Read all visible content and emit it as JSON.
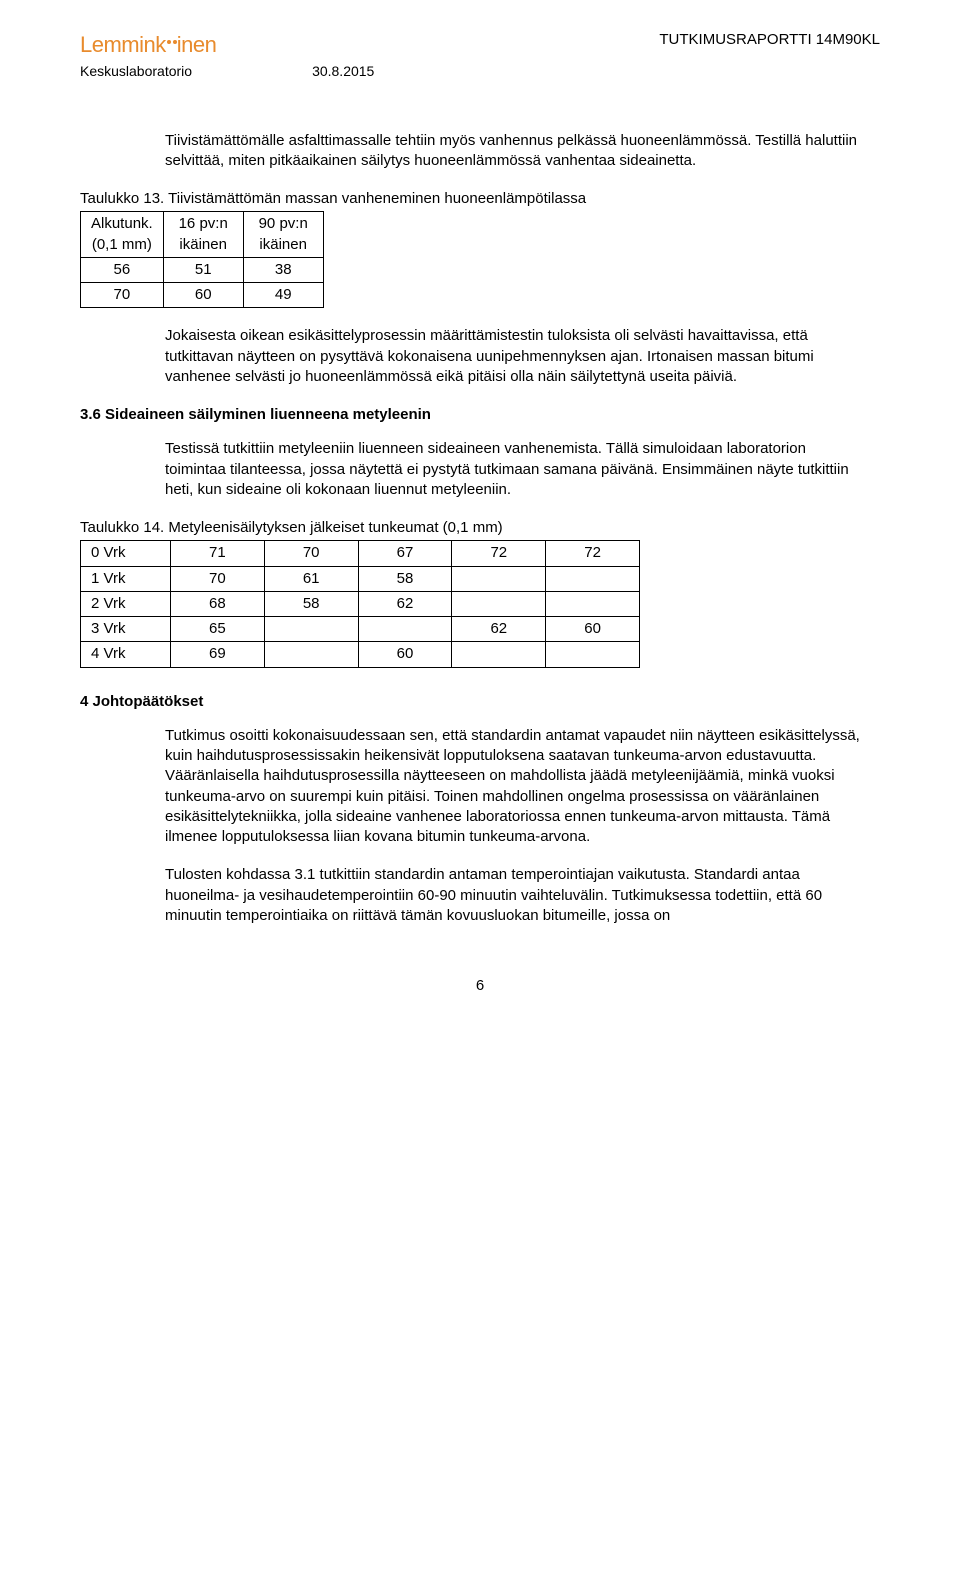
{
  "header": {
    "logo_text": "Lemmink",
    "logo_suffix": "inen",
    "logo_color": "#e88b2d",
    "dot_color": "#e88b2d",
    "sublabel_left": "Keskuslaboratorio",
    "sublabel_date": "30.8.2015",
    "report_label": "TUTKIMUSRAPORTTI 14M90KL"
  },
  "intro_para": "Tiivistämättömälle asfalttimassalle tehtiin myös vanhennus pelkässä huoneenlämmössä. Testillä haluttiin selvittää, miten pitkäaikainen säilytys huoneenlämmössä vanhentaa sideainetta.",
  "table13": {
    "caption": "Taulukko 13. Tiivistämättömän massan vanheneminen huoneenlämpötilassa",
    "head_r0c0": "Alkutunk.",
    "head_r0c1": "16 pv:n",
    "head_r0c2": "90 pv:n",
    "head_r1c0": "(0,1 mm)",
    "head_r1c1": "ikäinen",
    "head_r1c2": "ikäinen",
    "rows": [
      [
        "56",
        "51",
        "38"
      ],
      [
        "70",
        "60",
        "49"
      ]
    ]
  },
  "after_t13_para": "Jokaisesta oikean esikäsittelyprosessin määrittämistestin tuloksista oli selvästi havaittavissa, että tutkittavan näytteen on pysyttävä kokonaisena uunipehmennyksen ajan. Irtonaisen massan bitumi vanhenee selvästi jo huoneenlämmössä eikä pitäisi olla näin säilytettynä useita päiviä.",
  "section36_head": "3.6 Sideaineen säilyminen liuenneena metyleenin",
  "section36_para": "Testissä tutkittiin metyleeniin liuenneen sideaineen vanhenemista. Tällä simuloidaan laboratorion toimintaa tilanteessa, jossa näytettä ei pystytä tutkimaan samana päivänä. Ensimmäinen näyte tutkittiin heti, kun sideaine oli kokonaan liuennut metyleeniin.",
  "table14": {
    "caption": "Taulukko 14. Metyleenisäilytyksen jälkeiset tunkeumat (0,1 mm)",
    "rows": [
      {
        "label": "0 Vrk",
        "cells": [
          "71",
          "70",
          "67",
          "72",
          "72"
        ]
      },
      {
        "label": "1 Vrk",
        "cells": [
          "70",
          "61",
          "58",
          "",
          ""
        ]
      },
      {
        "label": "2 Vrk",
        "cells": [
          "68",
          "58",
          "62",
          "",
          ""
        ]
      },
      {
        "label": "3 Vrk",
        "cells": [
          "65",
          "",
          "",
          "62",
          "60"
        ]
      },
      {
        "label": "4 Vrk",
        "cells": [
          "69",
          "",
          "60",
          "",
          ""
        ]
      }
    ]
  },
  "conclusion_head": "4 Johtopäätökset",
  "conclusion_p1": "Tutkimus osoitti kokonaisuudessaan sen, että standardin antamat vapaudet niin näytteen esikäsittelyssä, kuin haihdutusprosessissakin heikensivät lopputuloksena saatavan tunkeuma-arvon edustavuutta. Vääränlaisella haihdutusprosessilla näytteeseen on mahdollista jäädä metyleenijäämiä, minkä vuoksi tunkeuma-arvo on suurempi kuin pitäisi. Toinen mahdollinen ongelma prosessissa on vääränlainen esikäsittelytekniikka, jolla sideaine vanhenee laboratoriossa ennen tunkeuma-arvon mittausta. Tämä ilmenee lopputuloksessa liian kovana bitumin tunkeuma-arvona.",
  "conclusion_p2": "Tulosten kohdassa 3.1 tutkittiin standardin antaman temperointiajan vaikutusta. Standardi antaa huoneilma- ja vesihaudetemperointiin 60-90 minuutin vaihteluvälin. Tutkimuksessa todettiin, että 60 minuutin temperointiaika on riittävä tämän kovuusluokan bitumeille, jossa on",
  "page_number": "6",
  "colors": {
    "text": "#000000",
    "background": "#ffffff",
    "border": "#000000"
  }
}
